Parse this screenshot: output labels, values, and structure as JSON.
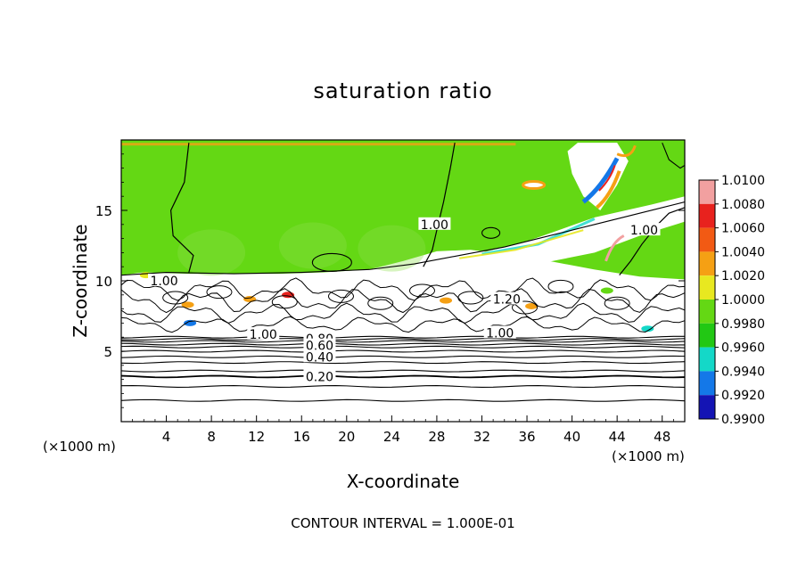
{
  "chart_data": {
    "type": "heatmap",
    "title": "saturation ratio",
    "xlabel": "X-coordinate",
    "ylabel": "Z-coordinate",
    "x_unit": "(×1000 m)",
    "y_unit": "(×1000 m)",
    "xlim": [
      0,
      50
    ],
    "ylim": [
      0,
      20
    ],
    "x_ticks": [
      4,
      8,
      12,
      16,
      20,
      24,
      28,
      32,
      36,
      40,
      44,
      48
    ],
    "y_ticks": [
      5,
      10,
      15
    ],
    "footer": "CONTOUR INTERVAL = 1.000E-01",
    "colorbar": {
      "levels": [
        "1.0100",
        "1.0080",
        "1.0060",
        "1.0040",
        "1.0020",
        "1.0000",
        "0.9980",
        "0.9960",
        "0.9940",
        "0.9920",
        "0.9900"
      ],
      "colors": [
        "#f2a0a0",
        "#e8221e",
        "#f25a14",
        "#f5a014",
        "#e8e820",
        "#64d814",
        "#22c814",
        "#14d8c8",
        "#1478e8",
        "#1414b4",
        "#500082"
      ]
    },
    "contour_labels": [
      {
        "text": "1.00",
        "x": 3.8,
        "z": 10.0
      },
      {
        "text": "1.00",
        "x": 27.8,
        "z": 14.0
      },
      {
        "text": "1.00",
        "x": 46.4,
        "z": 13.6
      },
      {
        "text": "1.20",
        "x": 34.2,
        "z": 8.7
      },
      {
        "text": "1.00",
        "x": 12.6,
        "z": 6.2
      },
      {
        "text": "1.00",
        "x": 33.6,
        "z": 6.3
      },
      {
        "text": "0.80",
        "x": 17.6,
        "z": 5.9
      },
      {
        "text": "0.60",
        "x": 17.6,
        "z": 5.4
      },
      {
        "text": "0.40",
        "x": 17.6,
        "z": 4.6
      },
      {
        "text": "0.20",
        "x": 17.6,
        "z": 3.2
      }
    ],
    "contour_levels_z": [
      1.5,
      2.5,
      3.2,
      3.6,
      4.2,
      4.6,
      5.0,
      5.3,
      5.5,
      5.7,
      5.85,
      6.0
    ]
  }
}
